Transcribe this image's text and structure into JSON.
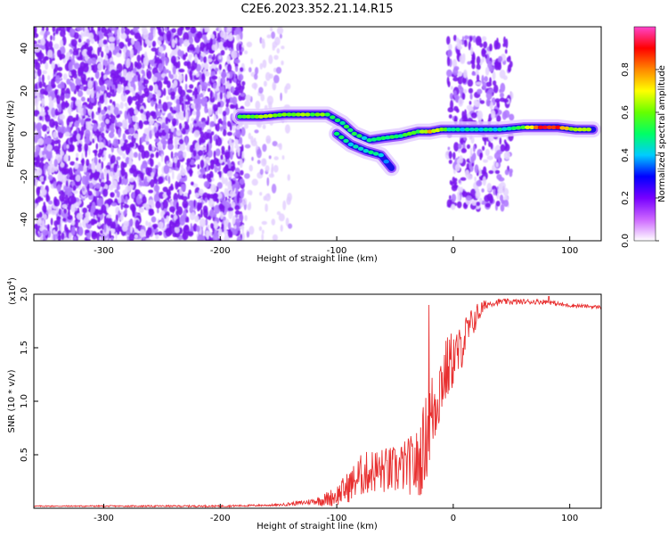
{
  "title": "C2E6.2023.352.21.14.R15",
  "chart_data": [
    {
      "type": "heatmap",
      "xlabel": "Height of straight line (km)",
      "ylabel": "Frequency (Hz)",
      "xlim": [
        -360,
        127
      ],
      "ylim": [
        -50,
        50
      ],
      "x_ticks": [
        -300,
        -200,
        -100,
        0,
        100
      ],
      "y_ticks": [
        -40,
        -20,
        0,
        20,
        40
      ],
      "grid": false,
      "colorbar": {
        "label": "Normalized spectral amplitude",
        "range": [
          0,
          1
        ],
        "ticks": [
          0.0,
          0.2,
          0.4,
          0.6,
          0.8
        ],
        "colors": [
          "#ffffff",
          "#cc66ff",
          "#7700ff",
          "#0000ff",
          "#00ccff",
          "#00ff66",
          "#66ff00",
          "#ffff00",
          "#ff8800",
          "#ff0000",
          "#ff44cc"
        ]
      },
      "noise_regions": [
        {
          "x_range": [
            -360,
            -180
          ],
          "freq_range": [
            -50,
            50
          ],
          "level": "high"
        },
        {
          "x_range": [
            -180,
            -140
          ],
          "freq_range": [
            -50,
            50
          ],
          "level": "low"
        },
        {
          "x_range": [
            -5,
            50
          ],
          "freq_range": [
            -35,
            45
          ],
          "level": "medium"
        }
      ],
      "signal_track": [
        {
          "x": -183,
          "freq": 8,
          "amp": 0.55
        },
        {
          "x": -165,
          "freq": 8,
          "amp": 0.6
        },
        {
          "x": -145,
          "freq": 9,
          "amp": 0.62
        },
        {
          "x": -125,
          "freq": 9,
          "amp": 0.6
        },
        {
          "x": -108,
          "freq": 9,
          "amp": 0.58
        },
        {
          "x": -95,
          "freq": 5,
          "amp": 0.5
        },
        {
          "x": -85,
          "freq": 0,
          "amp": 0.5
        },
        {
          "x": -72,
          "freq": -3,
          "amp": 0.45
        },
        {
          "x": -60,
          "freq": -2,
          "amp": 0.5
        },
        {
          "x": -45,
          "freq": -1,
          "amp": 0.5
        },
        {
          "x": -30,
          "freq": 1,
          "amp": 0.55
        },
        {
          "x": -20,
          "freq": 1,
          "amp": 0.75
        },
        {
          "x": -10,
          "freq": 2,
          "amp": 0.6
        },
        {
          "x": 0,
          "freq": 2,
          "amp": 0.45
        },
        {
          "x": 20,
          "freq": 2,
          "amp": 0.4
        },
        {
          "x": 40,
          "freq": 2,
          "amp": 0.45
        },
        {
          "x": 60,
          "freq": 3,
          "amp": 0.6
        },
        {
          "x": 75,
          "freq": 3,
          "amp": 0.9
        },
        {
          "x": 90,
          "freq": 3,
          "amp": 0.85
        },
        {
          "x": 105,
          "freq": 2,
          "amp": 0.6
        },
        {
          "x": 120,
          "freq": 2,
          "amp": 0.65
        }
      ],
      "signal_branch": [
        {
          "x": -100,
          "freq": 0,
          "amp": 0.5
        },
        {
          "x": -88,
          "freq": -5,
          "amp": 0.45
        },
        {
          "x": -75,
          "freq": -8,
          "amp": 0.45
        },
        {
          "x": -62,
          "freq": -10,
          "amp": 0.4
        },
        {
          "x": -53,
          "freq": -16,
          "amp": 0.45
        }
      ]
    },
    {
      "type": "line",
      "xlabel": "Height of straight line (km)",
      "ylabel": "SNR (10 * v/v)",
      "y_multiplier_label": "(x10",
      "y_multiplier_exp": "4",
      "y_multiplier_suffix": ")",
      "xlim": [
        -360,
        127
      ],
      "ylim": [
        0.0,
        2.0
      ],
      "x_ticks": [
        -300,
        -200,
        -100,
        0,
        100
      ],
      "y_ticks": [
        0.5,
        1.0,
        1.5,
        2.0
      ],
      "y_tick_labels": [
        "0.5",
        "1.0",
        "1.5",
        "2.0"
      ],
      "grid": false,
      "series": [
        {
          "color": "#e83030",
          "points": [
            [
              -360,
              0.02
            ],
            [
              -300,
              0.02
            ],
            [
              -200,
              0.02
            ],
            [
              -150,
              0.03
            ],
            [
              -130,
              0.05
            ],
            [
              -110,
              0.08
            ],
            [
              -100,
              0.12
            ],
            [
              -90,
              0.2
            ],
            [
              -80,
              0.3
            ],
            [
              -70,
              0.35
            ],
            [
              -60,
              0.35
            ],
            [
              -50,
              0.35
            ],
            [
              -40,
              0.4
            ],
            [
              -30,
              0.4
            ],
            [
              -25,
              0.6
            ],
            [
              -20,
              0.8
            ],
            [
              -15,
              1.0
            ],
            [
              -10,
              1.2
            ],
            [
              -5,
              1.3
            ],
            [
              0,
              1.4
            ],
            [
              5,
              1.45
            ],
            [
              10,
              1.6
            ],
            [
              15,
              1.7
            ],
            [
              20,
              1.8
            ],
            [
              25,
              1.87
            ],
            [
              30,
              1.91
            ],
            [
              40,
              1.93
            ],
            [
              60,
              1.93
            ],
            [
              80,
              1.93
            ],
            [
              95,
              1.9
            ],
            [
              110,
              1.89
            ],
            [
              127,
              1.88
            ]
          ],
          "noise_amplitude": [
            [
              -360,
              0.005
            ],
            [
              -150,
              0.01
            ],
            [
              -120,
              0.03
            ],
            [
              -100,
              0.1
            ],
            [
              -80,
              0.2
            ],
            [
              -60,
              0.22
            ],
            [
              -40,
              0.25
            ],
            [
              -30,
              0.35
            ],
            [
              -20,
              0.45
            ],
            [
              -10,
              0.35
            ],
            [
              0,
              0.28
            ],
            [
              10,
              0.2
            ],
            [
              20,
              0.12
            ],
            [
              30,
              0.03
            ],
            [
              127,
              0.015
            ]
          ],
          "peaks": [
            {
              "x": -21,
              "y": 1.9
            },
            {
              "x": 82,
              "y": 1.98
            }
          ]
        }
      ]
    }
  ]
}
